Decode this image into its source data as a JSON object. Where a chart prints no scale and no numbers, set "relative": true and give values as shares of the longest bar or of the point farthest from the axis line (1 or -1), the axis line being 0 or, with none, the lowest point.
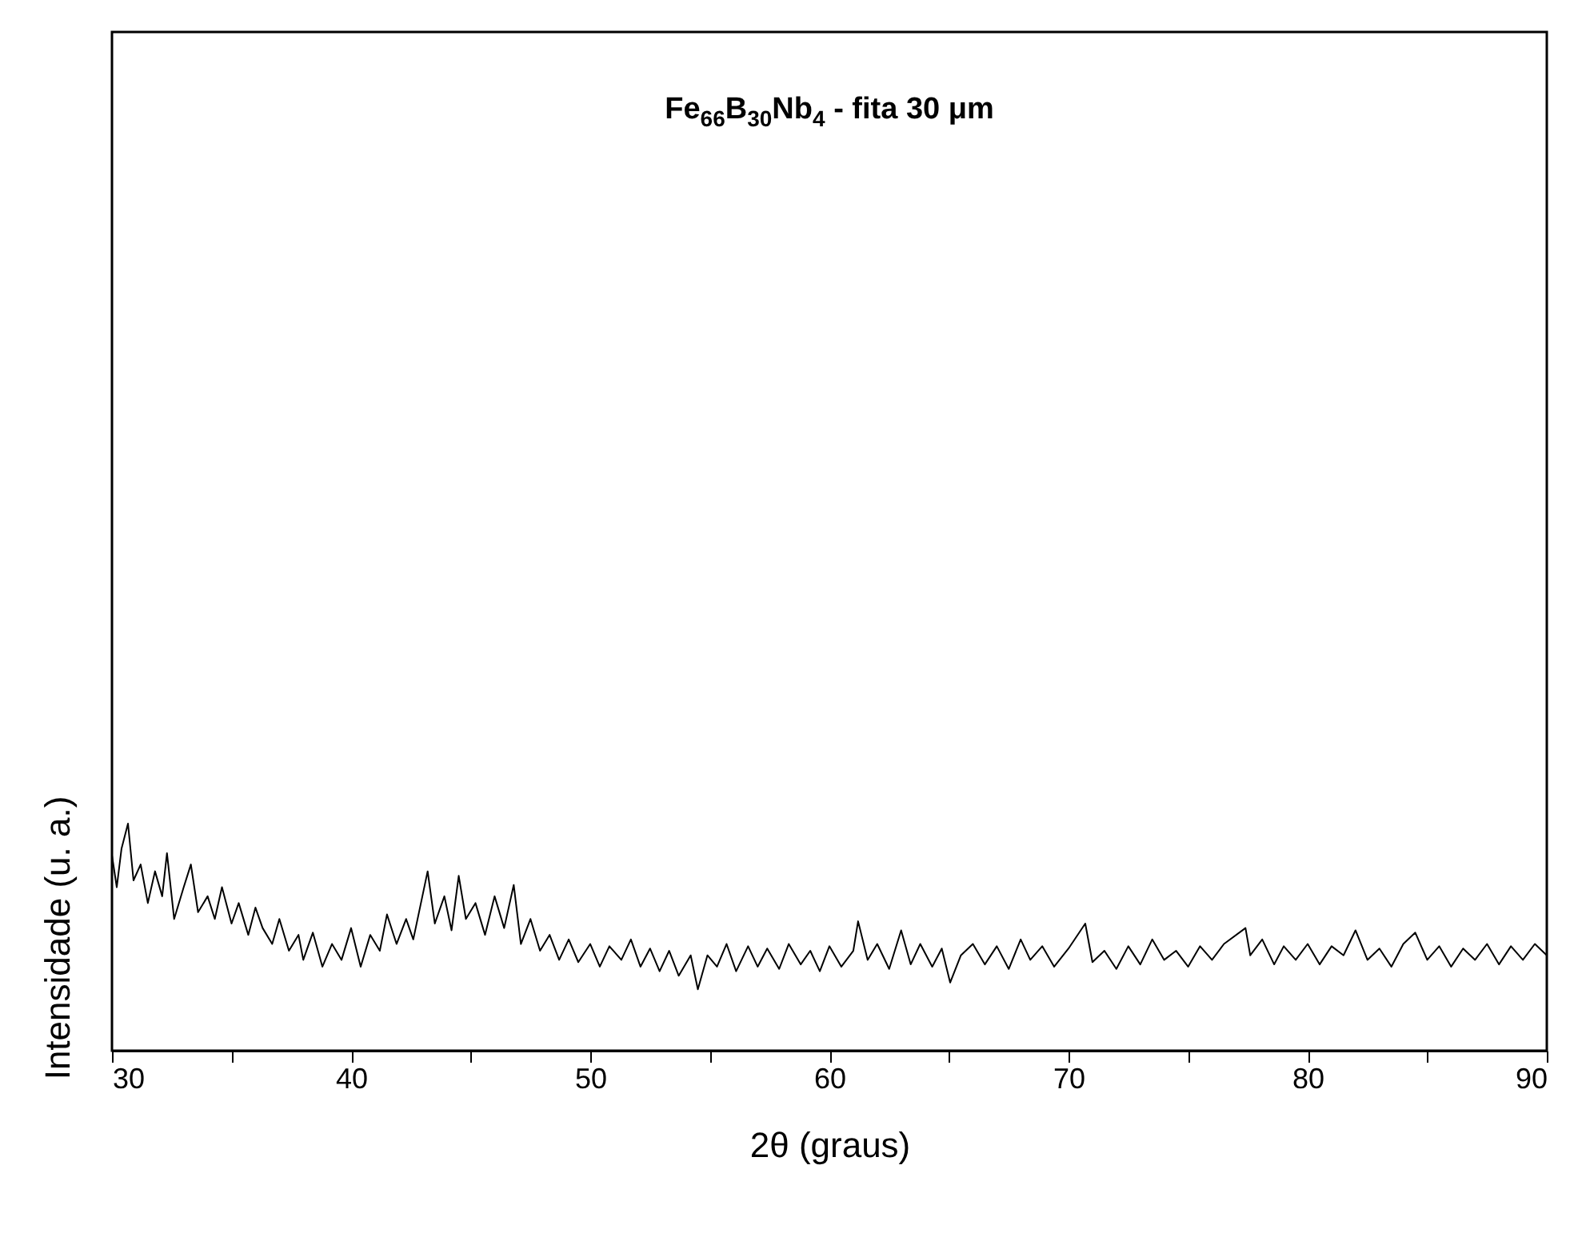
{
  "chart_data": {
    "type": "line",
    "relative": true,
    "xlabel": "2θ (graus)",
    "ylabel": "Intensidade (u. a.)",
    "annotations": [
      "Fe$_{66}$B$_{30}$Nb$_{4}$ - fita 30 μm"
    ],
    "xlim": [
      30,
      90
    ],
    "xticks": [
      30,
      {
        "value": 35,
        "label": null
      },
      40,
      {
        "value": 45,
        "label": null
      },
      50,
      {
        "value": 55,
        "label": null
      },
      60,
      {
        "value": 65,
        "label": null
      },
      70,
      {
        "value": 75,
        "label": null
      },
      80,
      {
        "value": 85,
        "label": null
      },
      90
    ],
    "series": [
      {
        "color": "#000000",
        "x": [
          30.0,
          30.2,
          30.4,
          30.67,
          30.9,
          31.2,
          31.5,
          31.8,
          32.1,
          32.3,
          32.6,
          33.0,
          33.3,
          33.6,
          34.0,
          34.3,
          34.6,
          35.0,
          35.3,
          35.7,
          36.0,
          36.3,
          36.7,
          37.0,
          37.4,
          37.8,
          38.0,
          38.4,
          38.8,
          39.2,
          39.6,
          40.0,
          40.4,
          40.8,
          41.2,
          41.5,
          41.9,
          42.3,
          42.6,
          43.2,
          43.5,
          43.9,
          44.2,
          44.5,
          44.8,
          45.2,
          45.6,
          46.0,
          46.4,
          46.8,
          47.1,
          47.5,
          47.9,
          48.3,
          48.7,
          49.1,
          49.5,
          50.0,
          50.4,
          50.8,
          51.3,
          51.7,
          52.1,
          52.5,
          52.9,
          53.3,
          53.7,
          54.2,
          54.5,
          54.9,
          55.3,
          55.7,
          56.1,
          56.6,
          57.0,
          57.4,
          57.9,
          58.3,
          58.8,
          59.2,
          59.6,
          60.0,
          60.5,
          61.0,
          61.2,
          61.6,
          62.0,
          62.5,
          63.0,
          63.4,
          63.8,
          64.3,
          64.7,
          65.05,
          65.5,
          66.0,
          66.5,
          67.0,
          67.5,
          68.0,
          68.4,
          68.9,
          69.4,
          70.0,
          70.7,
          71.0,
          71.5,
          72.0,
          72.5,
          73.0,
          73.5,
          74.0,
          74.5,
          75.0,
          75.5,
          76.0,
          76.5,
          77.4,
          77.6,
          78.1,
          78.6,
          79.0,
          79.5,
          80.0,
          80.5,
          81.0,
          81.5,
          82.0,
          82.5,
          83.0,
          83.5,
          84.0,
          84.5,
          85.0,
          85.5,
          86.0,
          86.5,
          87.0,
          87.5,
          88.0,
          88.5,
          89.0,
          89.5,
          90.0
        ],
        "values": [
          0.86,
          0.72,
          0.89,
          1,
          0.75,
          0.82,
          0.65,
          0.79,
          0.68,
          0.87,
          0.58,
          0.72,
          0.82,
          0.61,
          0.68,
          0.58,
          0.72,
          0.56,
          0.65,
          0.51,
          0.63,
          0.54,
          0.47,
          0.58,
          0.44,
          0.51,
          0.4,
          0.52,
          0.37,
          0.47,
          0.4,
          0.54,
          0.37,
          0.51,
          0.44,
          0.6,
          0.47,
          0.58,
          0.49,
          0.79,
          0.56,
          0.68,
          0.53,
          0.77,
          0.58,
          0.65,
          0.51,
          0.68,
          0.54,
          0.73,
          0.47,
          0.58,
          0.44,
          0.51,
          0.4,
          0.49,
          0.39,
          0.47,
          0.37,
          0.46,
          0.4,
          0.49,
          0.37,
          0.45,
          0.35,
          0.44,
          0.33,
          0.42,
          0.27,
          0.42,
          0.37,
          0.47,
          0.35,
          0.46,
          0.37,
          0.45,
          0.36,
          0.47,
          0.38,
          0.44,
          0.35,
          0.46,
          0.37,
          0.44,
          0.57,
          0.4,
          0.47,
          0.36,
          0.53,
          0.38,
          0.47,
          0.37,
          0.45,
          0.3,
          0.42,
          0.47,
          0.38,
          0.46,
          0.36,
          0.49,
          0.4,
          0.46,
          0.37,
          0.45,
          0.56,
          0.39,
          0.44,
          0.36,
          0.46,
          0.38,
          0.49,
          0.4,
          0.44,
          0.37,
          0.46,
          0.4,
          0.47,
          0.54,
          0.42,
          0.49,
          0.38,
          0.46,
          0.4,
          0.47,
          0.38,
          0.46,
          0.42,
          0.53,
          0.4,
          0.45,
          0.37,
          0.47,
          0.52,
          0.4,
          0.46,
          0.37,
          0.45,
          0.4,
          0.47,
          0.38,
          0.46,
          0.4,
          0.47,
          0.42
        ]
      }
    ]
  }
}
